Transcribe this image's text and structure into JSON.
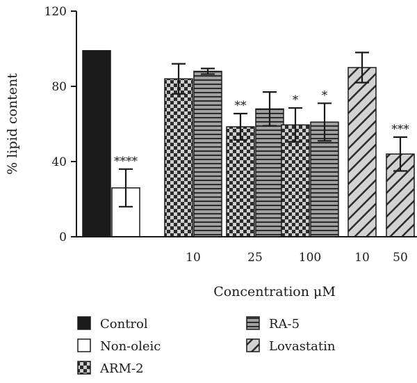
{
  "chart_data": {
    "type": "bar",
    "ylabel": "% lipid content",
    "xlabel": "Concentration μM",
    "ylim": [
      0,
      120
    ],
    "yticks": [
      0,
      40,
      80,
      120
    ],
    "colors": {
      "Control": "#1a1a1a",
      "Non-oleic": "#ffffff",
      "ARM-2": "#3a3a3a",
      "RA-5": "#8f8f8f",
      "Lovastatin": "#d2d2d2"
    },
    "patterns": {
      "Control": "solid",
      "Non-oleic": "empty",
      "ARM-2": "checkerboard",
      "RA-5": "horizontal-stripes",
      "Lovastatin": "diagonal-stripes"
    },
    "groups": [
      {
        "label": "",
        "bars": [
          {
            "series": "Control",
            "value": 99,
            "err": null,
            "sig": ""
          },
          {
            "series": "Non-oleic",
            "value": 26,
            "err": 10,
            "sig": "****"
          }
        ]
      },
      {
        "label": "10",
        "bars": [
          {
            "series": "ARM-2",
            "value": 84,
            "err": 8,
            "sig": ""
          },
          {
            "series": "RA-5",
            "value": 88,
            "err": 1.5,
            "sig": ""
          }
        ]
      },
      {
        "label": "25",
        "bars": [
          {
            "series": "ARM-2",
            "value": 58.5,
            "err": 7,
            "sig": "**"
          },
          {
            "series": "RA-5",
            "value": 68,
            "err": 9,
            "sig": ""
          }
        ]
      },
      {
        "label": "100",
        "bars": [
          {
            "series": "ARM-2",
            "value": 59.5,
            "err": 9,
            "sig": "*"
          },
          {
            "series": "RA-5",
            "value": 61,
            "err": 10,
            "sig": "*"
          }
        ]
      },
      {
        "label": "10",
        "bars": [
          {
            "series": "Lovastatin",
            "value": 90,
            "err": 8,
            "sig": ""
          }
        ]
      },
      {
        "label": "50",
        "bars": [
          {
            "series": "Lovastatin",
            "value": 44,
            "err": 9,
            "sig": "***"
          }
        ]
      }
    ],
    "legend": {
      "position": "bottom",
      "items": [
        "Control",
        "Non-oleic",
        "ARM-2",
        "RA-5",
        "Lovastatin"
      ]
    },
    "grid": false
  }
}
